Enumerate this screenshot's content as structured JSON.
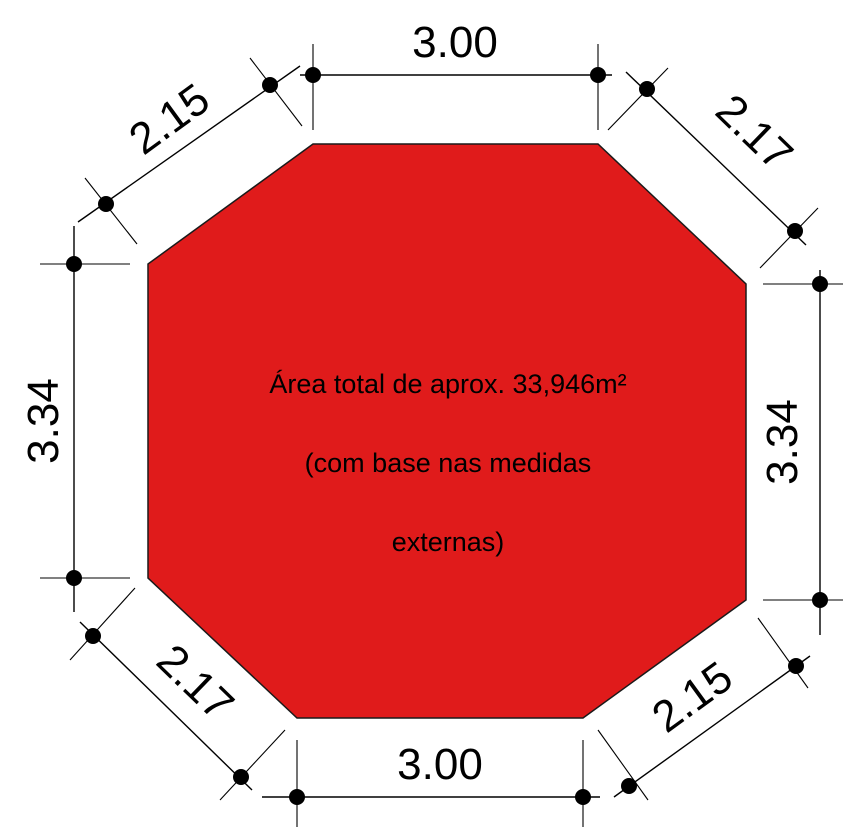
{
  "colors": {
    "fill": "#e01b1b",
    "line": "#000000",
    "background": "#ffffff"
  },
  "area_label": {
    "line1": "Área total de aprox. 33,946m²",
    "line2": "(com base nas medidas",
    "line3": "externas)"
  },
  "dimensions": {
    "top": "3.00",
    "top_right": "2.17",
    "right": "3.34",
    "bottom_right": "2.15",
    "bottom": "3.00",
    "bottom_left": "2.17",
    "left": "3.34",
    "top_left": "2.15"
  }
}
